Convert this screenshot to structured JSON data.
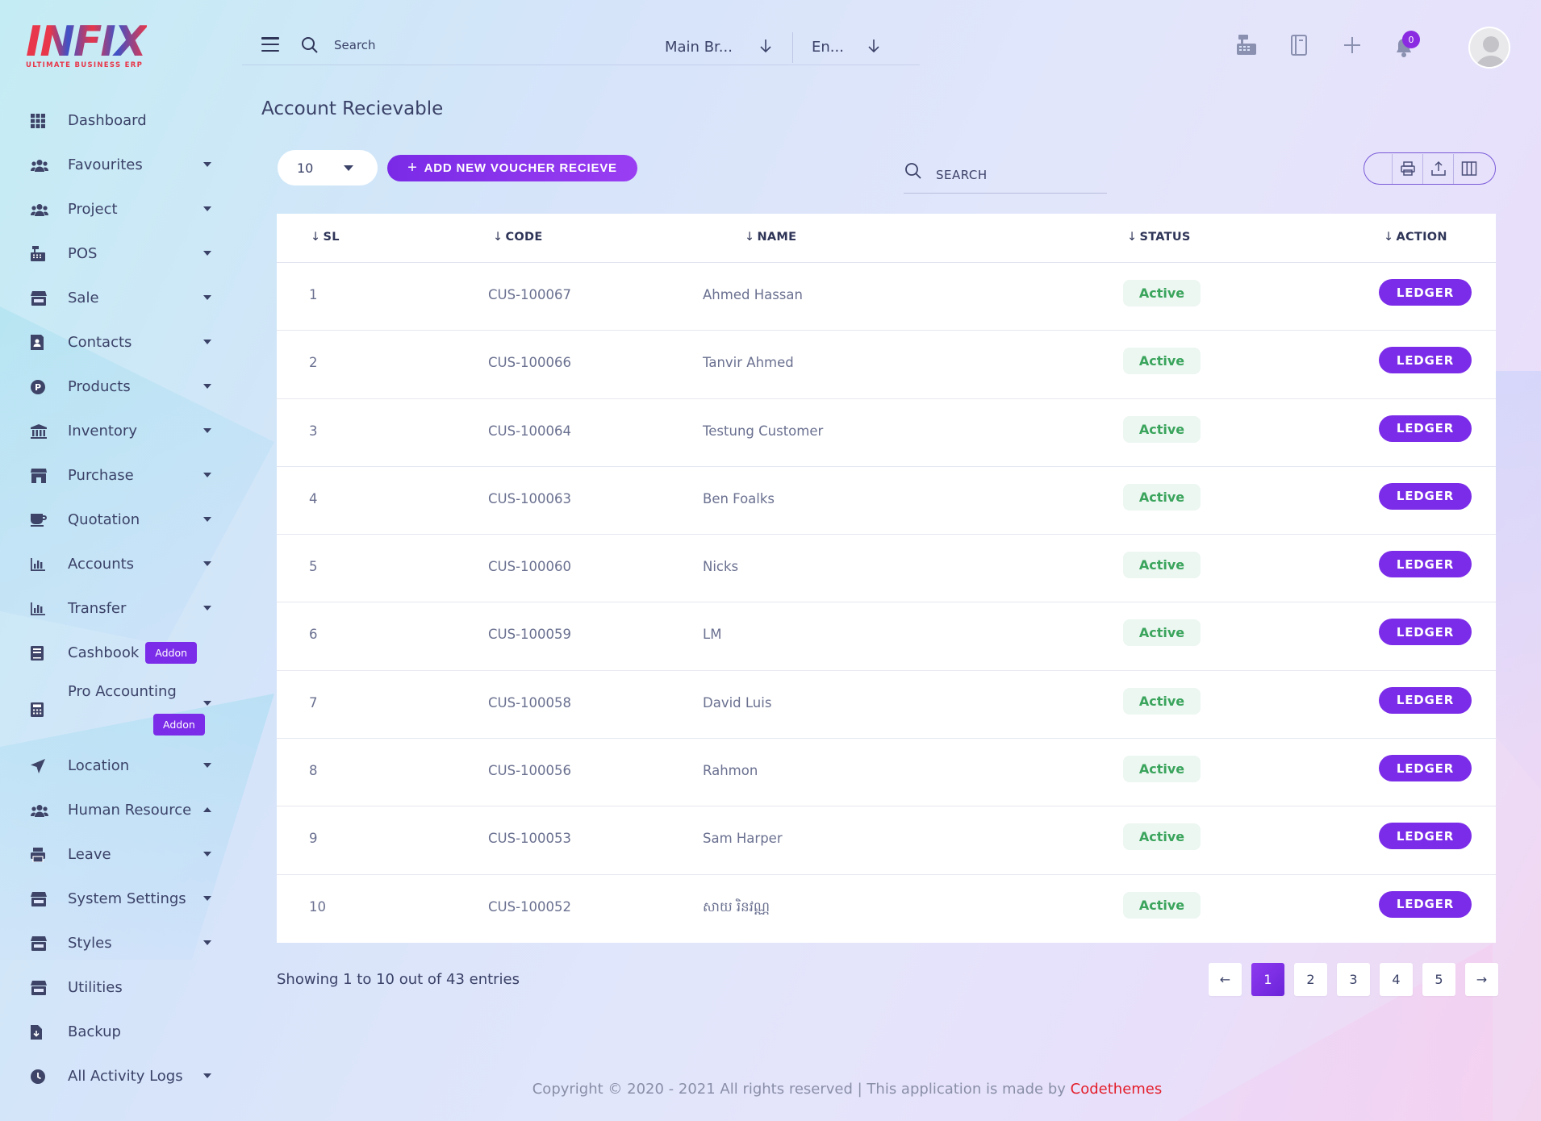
{
  "logo": {
    "word": "INFIX",
    "tagline": "ULTIMATE BUSINESS ERP"
  },
  "sidebar": {
    "items": [
      {
        "label": "Dashboard",
        "icon": "grid-icon",
        "caret": ""
      },
      {
        "label": "Favourites",
        "icon": "users-icon",
        "caret": "down"
      },
      {
        "label": "Project",
        "icon": "users-icon",
        "caret": "down"
      },
      {
        "label": "POS",
        "icon": "cash-register-icon",
        "caret": "down"
      },
      {
        "label": "Sale",
        "icon": "store-icon",
        "caret": "down"
      },
      {
        "label": "Contacts",
        "icon": "contact-book-icon",
        "caret": "down"
      },
      {
        "label": "Products",
        "icon": "product-circle-icon",
        "caret": "down"
      },
      {
        "label": "Inventory",
        "icon": "bank-icon",
        "caret": "down"
      },
      {
        "label": "Purchase",
        "icon": "shop-icon",
        "caret": "down"
      },
      {
        "label": "Quotation",
        "icon": "cup-icon",
        "caret": "down"
      },
      {
        "label": "Accounts",
        "icon": "bar-chart-icon",
        "caret": "down"
      },
      {
        "label": "Transfer",
        "icon": "bar-chart-icon",
        "caret": "down"
      },
      {
        "label": "Cashbook",
        "icon": "book-icon",
        "caret": "",
        "badge": "Addon"
      },
      {
        "label": "Pro Accounting",
        "icon": "calculator-icon",
        "caret": "down",
        "badge": "Addon"
      },
      {
        "label": "Location",
        "icon": "location-arrow-icon",
        "caret": "down"
      },
      {
        "label": "Human Resource",
        "icon": "users-icon",
        "caret": "up"
      },
      {
        "label": "Leave",
        "icon": "printer-icon",
        "caret": "down"
      },
      {
        "label": "System Settings",
        "icon": "store-icon",
        "caret": "down"
      },
      {
        "label": "Styles",
        "icon": "store-icon",
        "caret": "down"
      },
      {
        "label": "Utilities",
        "icon": "store-icon",
        "caret": ""
      },
      {
        "label": "Backup",
        "icon": "file-download-icon",
        "caret": ""
      },
      {
        "label": "All Activity Logs",
        "icon": "clock-icon",
        "caret": "down"
      }
    ]
  },
  "header": {
    "search_placeholder": "Search",
    "branch": "Main Br...",
    "language": "En...",
    "notification_count": "0",
    "icons": [
      "cash-register-icon",
      "notebook-icon",
      "plus-icon",
      "bell-icon"
    ]
  },
  "page": {
    "title": "Account Recievable"
  },
  "toolbar": {
    "per_page": "10",
    "add_label": "ADD NEW VOUCHER RECIEVE",
    "search_placeholder": "SEARCH",
    "tools": [
      "print-icon",
      "export-icon",
      "columns-icon"
    ]
  },
  "table": {
    "columns": [
      "SL",
      "CODE",
      "NAME",
      "STATUS",
      "ACTION"
    ],
    "rows": [
      {
        "sl": "1",
        "code": "CUS-100067",
        "name": "Ahmed Hassan",
        "status": "Active",
        "action": "LEDGER"
      },
      {
        "sl": "2",
        "code": "CUS-100066",
        "name": "Tanvir Ahmed",
        "status": "Active",
        "action": "LEDGER"
      },
      {
        "sl": "3",
        "code": "CUS-100064",
        "name": "Testung Customer",
        "status": "Active",
        "action": "LEDGER"
      },
      {
        "sl": "4",
        "code": "CUS-100063",
        "name": "Ben Foalks",
        "status": "Active",
        "action": "LEDGER"
      },
      {
        "sl": "5",
        "code": "CUS-100060",
        "name": "Nicks",
        "status": "Active",
        "action": "LEDGER"
      },
      {
        "sl": "6",
        "code": "CUS-100059",
        "name": "LM",
        "status": "Active",
        "action": "LEDGER"
      },
      {
        "sl": "7",
        "code": "CUS-100058",
        "name": "David Luis",
        "status": "Active",
        "action": "LEDGER"
      },
      {
        "sl": "8",
        "code": "CUS-100056",
        "name": "Rahmon",
        "status": "Active",
        "action": "LEDGER"
      },
      {
        "sl": "9",
        "code": "CUS-100053",
        "name": "Sam Harper",
        "status": "Active",
        "action": "LEDGER"
      },
      {
        "sl": "10",
        "code": "CUS-100052",
        "name": "សាយ រិនវណ្ណ",
        "status": "Active",
        "action": "LEDGER"
      }
    ]
  },
  "pagination": {
    "summary": "Showing 1 to 10 out of 43 entries",
    "prev": "←",
    "next": "→",
    "pages": [
      "1",
      "2",
      "3",
      "4",
      "5"
    ],
    "current": "1"
  },
  "footer": {
    "text": "Copyright © 2020 - 2021 All rights reserved | This application is made by",
    "brand": "Codethemes"
  },
  "colors": {
    "accent": "#7b2ce8",
    "status_bg": "#ecf7f1",
    "status_text": "#3aa45c",
    "brand_red": "#e31e2b"
  }
}
